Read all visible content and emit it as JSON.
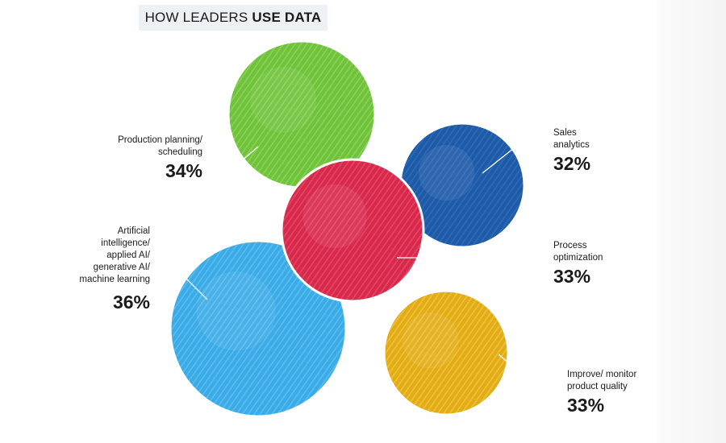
{
  "title": {
    "normal": "HOW LEADERS",
    "bold": "USE DATA"
  },
  "chart_data": {
    "type": "bubble",
    "title": "HOW LEADERS USE DATA",
    "unit": "%",
    "items": [
      {
        "label": "Production planning/ scheduling",
        "lines": [
          "Production planning/",
          "scheduling"
        ],
        "value": 34,
        "display": "34%",
        "color": "#6fc23a"
      },
      {
        "label": "Sales analytics",
        "lines": [
          "Sales",
          "analytics"
        ],
        "value": 32,
        "display": "32%",
        "color": "#1f5aa6"
      },
      {
        "label": "Process optimization",
        "lines": [
          "Process",
          "optimization"
        ],
        "value": 33,
        "display": "33%",
        "color": "#d8284c"
      },
      {
        "label": "Artificial intelligence/ applied AI/ generative AI/ machine learning",
        "lines": [
          "Artificial",
          "intelligence/",
          "applied AI/",
          "generative AI/",
          "machine learning"
        ],
        "value": 36,
        "display": "36%",
        "color": "#3aabe6"
      },
      {
        "label": "Improve/ monitor product quality",
        "lines": [
          "Improve/ monitor",
          "product quality"
        ],
        "value": 33,
        "display": "33%",
        "color": "#e3ac13"
      }
    ]
  }
}
